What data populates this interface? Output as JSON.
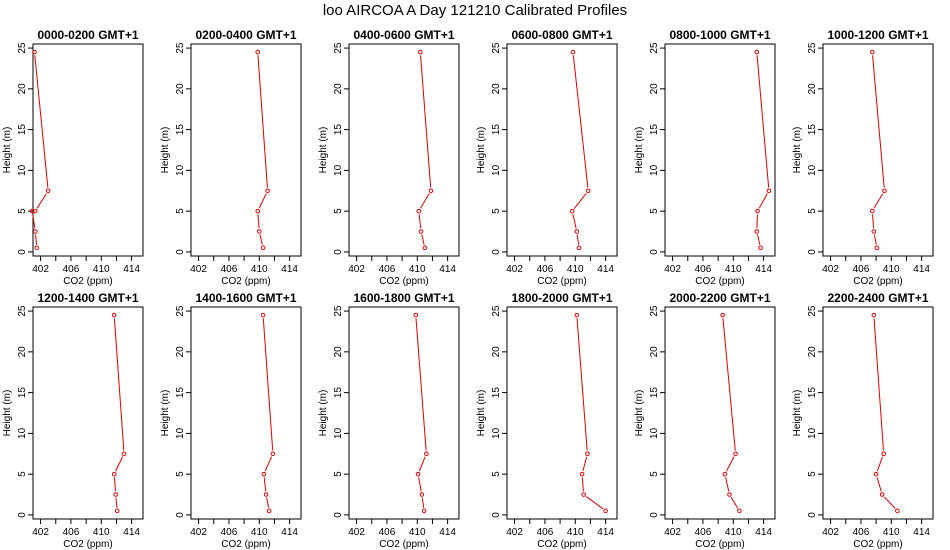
{
  "figure_title": "loo AIRCOA A  Day 121210  Calibrated Profiles",
  "colors": {
    "series": "#e00000",
    "axis": "#000000",
    "background": "#ffffff"
  },
  "chart_data": [
    {
      "type": "line",
      "title": "0000-0200 GMT+1",
      "xlabel": "CO2 (ppm)",
      "ylabel": "Height (m)",
      "xlim": [
        401,
        415.5
      ],
      "ylim": [
        -0.5,
        25.5
      ],
      "xticks": [
        402,
        406,
        410,
        414
      ],
      "yticks": [
        0,
        5,
        10,
        15,
        20,
        25
      ],
      "grid": false,
      "x": [
        401.5,
        401.3,
        400.9,
        401.3,
        403.0,
        401.2
      ],
      "y": [
        0.5,
        2.5,
        5.0,
        5.0,
        7.5,
        24.5
      ]
    },
    {
      "type": "line",
      "title": "0200-0400 GMT+1",
      "xlabel": "CO2 (ppm)",
      "ylabel": "Height (m)",
      "xlim": [
        401,
        415.5
      ],
      "ylim": [
        -0.5,
        25.5
      ],
      "xticks": [
        402,
        406,
        410,
        414
      ],
      "yticks": [
        0,
        5,
        10,
        15,
        20,
        25
      ],
      "grid": false,
      "x": [
        410.5,
        410.0,
        409.8,
        411.1,
        409.8
      ],
      "y": [
        0.5,
        2.5,
        5.0,
        7.5,
        24.5
      ]
    },
    {
      "type": "line",
      "title": "0400-0600 GMT+1",
      "xlabel": "CO2 (ppm)",
      "ylabel": "Height (m)",
      "xlim": [
        401,
        415.5
      ],
      "ylim": [
        -0.5,
        25.5
      ],
      "xticks": [
        402,
        406,
        410,
        414
      ],
      "yticks": [
        0,
        5,
        10,
        15,
        20,
        25
      ],
      "grid": false,
      "x": [
        411.0,
        410.5,
        410.2,
        411.8,
        410.4
      ],
      "y": [
        0.5,
        2.5,
        5.0,
        7.5,
        24.5
      ]
    },
    {
      "type": "line",
      "title": "0600-0800 GMT+1",
      "xlabel": "CO2 (ppm)",
      "ylabel": "Height (m)",
      "xlim": [
        401,
        415.5
      ],
      "ylim": [
        -0.5,
        25.5
      ],
      "xticks": [
        402,
        406,
        410,
        414
      ],
      "yticks": [
        0,
        5,
        10,
        15,
        20,
        25
      ],
      "grid": false,
      "x": [
        410.5,
        410.2,
        409.6,
        411.7,
        409.7
      ],
      "y": [
        0.5,
        2.5,
        5.0,
        7.5,
        24.5
      ]
    },
    {
      "type": "line",
      "title": "0800-1000 GMT+1",
      "xlabel": "CO2 (ppm)",
      "ylabel": "Height (m)",
      "xlim": [
        401,
        415.5
      ],
      "ylim": [
        -0.5,
        25.5
      ],
      "xticks": [
        402,
        406,
        410,
        414
      ],
      "yticks": [
        0,
        5,
        10,
        15,
        20,
        25
      ],
      "grid": false,
      "x": [
        413.6,
        413.1,
        413.2,
        414.7,
        413.1
      ],
      "y": [
        0.5,
        2.5,
        5.0,
        7.5,
        24.5
      ]
    },
    {
      "type": "line",
      "title": "1000-1200 GMT+1",
      "xlabel": "CO2 (ppm)",
      "ylabel": "Height (m)",
      "xlim": [
        401,
        415.5
      ],
      "ylim": [
        -0.5,
        25.5
      ],
      "xticks": [
        402,
        406,
        410,
        414
      ],
      "yticks": [
        0,
        5,
        10,
        15,
        20,
        25
      ],
      "grid": false,
      "x": [
        408.1,
        407.7,
        407.5,
        409.1,
        407.5
      ],
      "y": [
        0.5,
        2.5,
        5.0,
        7.5,
        24.5
      ]
    },
    {
      "type": "line",
      "title": "1200-1400 GMT+1",
      "xlabel": "CO2 (ppm)",
      "ylabel": "Height (m)",
      "xlim": [
        401,
        415.5
      ],
      "ylim": [
        -0.5,
        25.5
      ],
      "xticks": [
        402,
        406,
        410,
        414
      ],
      "yticks": [
        0,
        5,
        10,
        15,
        20,
        25
      ],
      "grid": false,
      "x": [
        412.1,
        411.9,
        411.7,
        413.0,
        411.7
      ],
      "y": [
        0.5,
        2.5,
        5.0,
        7.5,
        24.5
      ]
    },
    {
      "type": "line",
      "title": "1400-1600 GMT+1",
      "xlabel": "CO2 (ppm)",
      "ylabel": "Height (m)",
      "xlim": [
        401,
        415.5
      ],
      "ylim": [
        -0.5,
        25.5
      ],
      "xticks": [
        402,
        406,
        410,
        414
      ],
      "yticks": [
        0,
        5,
        10,
        15,
        20,
        25
      ],
      "grid": false,
      "x": [
        411.3,
        410.9,
        410.6,
        411.8,
        410.5
      ],
      "y": [
        0.5,
        2.5,
        5.0,
        7.5,
        24.5
      ]
    },
    {
      "type": "line",
      "title": "1600-1800 GMT+1",
      "xlabel": "CO2 (ppm)",
      "ylabel": "Height (m)",
      "xlim": [
        401,
        415.5
      ],
      "ylim": [
        -0.5,
        25.5
      ],
      "xticks": [
        402,
        406,
        410,
        414
      ],
      "yticks": [
        0,
        5,
        10,
        15,
        20,
        25
      ],
      "grid": false,
      "x": [
        410.9,
        410.6,
        410.1,
        411.2,
        409.8
      ],
      "y": [
        0.5,
        2.5,
        5.0,
        7.5,
        24.5
      ]
    },
    {
      "type": "line",
      "title": "1800-2000 GMT+1",
      "xlabel": "CO2 (ppm)",
      "ylabel": "Height (m)",
      "xlim": [
        401,
        415.5
      ],
      "ylim": [
        -0.5,
        25.5
      ],
      "xticks": [
        402,
        406,
        410,
        414
      ],
      "yticks": [
        0,
        5,
        10,
        15,
        20,
        25
      ],
      "grid": false,
      "x": [
        414.0,
        411.1,
        410.9,
        411.6,
        410.2
      ],
      "y": [
        0.5,
        2.5,
        5.0,
        7.5,
        24.5
      ]
    },
    {
      "type": "line",
      "title": "2000-2200 GMT+1",
      "xlabel": "CO2 (ppm)",
      "ylabel": "Height (m)",
      "xlim": [
        401,
        415.5
      ],
      "ylim": [
        -0.5,
        25.5
      ],
      "xticks": [
        402,
        406,
        410,
        414
      ],
      "yticks": [
        0,
        5,
        10,
        15,
        20,
        25
      ],
      "grid": false,
      "x": [
        410.8,
        409.5,
        408.9,
        410.3,
        408.6
      ],
      "y": [
        0.5,
        2.5,
        5.0,
        7.5,
        24.5
      ]
    },
    {
      "type": "line",
      "title": "2200-2400 GMT+1",
      "xlabel": "CO2 (ppm)",
      "ylabel": "Height (m)",
      "xlim": [
        401,
        415.5
      ],
      "ylim": [
        -0.5,
        25.5
      ],
      "xticks": [
        402,
        406,
        410,
        414
      ],
      "yticks": [
        0,
        5,
        10,
        15,
        20,
        25
      ],
      "grid": false,
      "x": [
        410.8,
        408.8,
        408.0,
        409.0,
        407.7
      ],
      "y": [
        0.5,
        2.5,
        5.0,
        7.5,
        24.5
      ]
    }
  ]
}
